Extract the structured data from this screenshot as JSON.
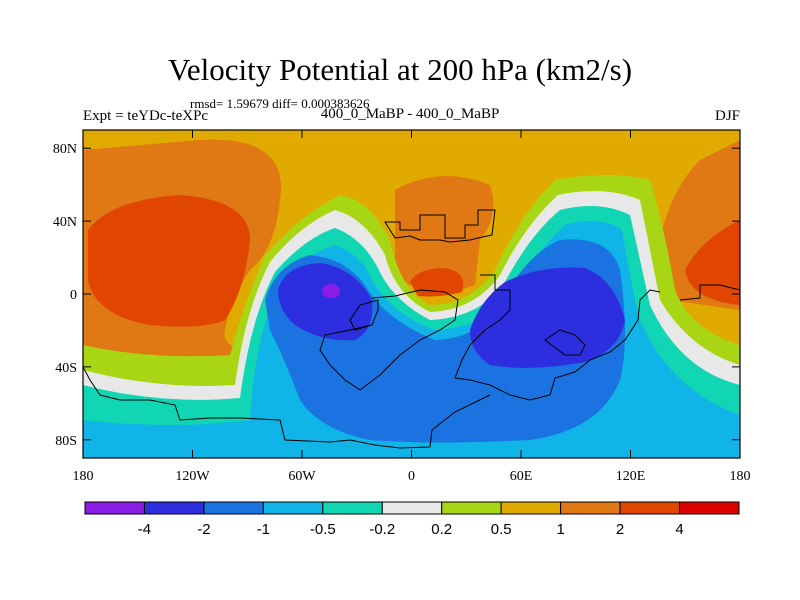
{
  "chart_data": {
    "type": "filled_contour_map",
    "title": "Velocity Potential at 200 hPa (km2/s)",
    "stats_line": "rmsd= 1.59679 diff= 0.000383626",
    "left_label": "Expt = teYDc-teXPc",
    "center_label": "400_0_MaBP - 400_0_MaBP",
    "right_label": "DJF",
    "x_ticks": [
      "180",
      "120W",
      "60W",
      "0",
      "60E",
      "120E",
      "180"
    ],
    "x_tick_values": [
      -180,
      -120,
      -60,
      0,
      60,
      120,
      180
    ],
    "y_ticks": [
      "80N",
      "40N",
      "0",
      "40S",
      "80S"
    ],
    "y_tick_values": [
      80,
      40,
      0,
      -40,
      -80
    ],
    "xlim": [
      -180,
      180
    ],
    "ylim": [
      -90,
      90
    ],
    "colorbar": {
      "labels": [
        "-4",
        "-2",
        "-1",
        "-0.5",
        "-0.2",
        "0.2",
        "0.5",
        "1",
        "2",
        "4"
      ],
      "levels": [
        -4,
        -2,
        -1,
        -0.5,
        -0.2,
        0.2,
        0.5,
        1,
        2,
        4
      ],
      "colors": [
        "#8a1ee6",
        "#2d2ee0",
        "#1a73e0",
        "#10b4e6",
        "#10d6b4",
        "#e8e8e8",
        "#a8d614",
        "#e0aa00",
        "#e07814",
        "#e04600",
        "#dc0000"
      ]
    },
    "features": [
      {
        "name": "West Pacific divergence center (minimum)",
        "lon": 90,
        "lat": -10,
        "level": "< -2"
      },
      {
        "name": "South America divergence center",
        "lon": -45,
        "lat": 0,
        "level": "< -4"
      },
      {
        "name": "East Pacific convergence maximum",
        "lon": -150,
        "lat": 20,
        "level": "> 2"
      },
      {
        "name": "North Africa convergence maximum",
        "lon": 5,
        "lat": 5,
        "level": "> 2"
      }
    ]
  }
}
